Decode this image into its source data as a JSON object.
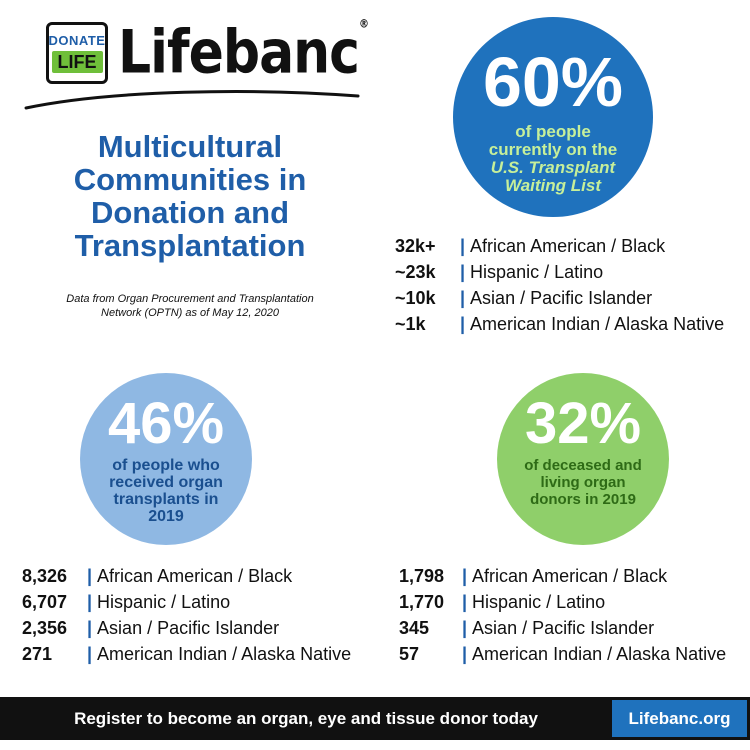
{
  "logo": {
    "badge_top": "DONATE",
    "badge_bottom": "LIFE",
    "brand": "Lifebanc",
    "brand_mark": "®"
  },
  "title": "Multicultural Communities in Donation and Transplantation",
  "source_note": "Data from Organ Procurement and Transplantation Network (OPTN) as of May 12, 2020",
  "waiting_list": {
    "percent": "60%",
    "caption_line1": "of people",
    "caption_line2": "currently on the",
    "caption_italic": "U.S. Transplant Waiting List",
    "rows": [
      {
        "count": "32k+",
        "group": "African American / Black"
      },
      {
        "count": "~23k",
        "group": "Hispanic / Latino"
      },
      {
        "count": "~10k",
        "group": "Asian / Pacific Islander"
      },
      {
        "count": "~1k",
        "group": "American Indian / Alaska Native"
      }
    ]
  },
  "recipients": {
    "percent": "46%",
    "caption": "of people who received organ transplants in 2019",
    "rows": [
      {
        "count": "8,326",
        "group": "African American / Black"
      },
      {
        "count": "6,707",
        "group": "Hispanic / Latino"
      },
      {
        "count": "2,356",
        "group": "Asian / Pacific Islander"
      },
      {
        "count": "271",
        "group": "American Indian / Alaska Native"
      }
    ]
  },
  "donors": {
    "percent": "32%",
    "caption": "of deceased and living organ donors in 2019",
    "rows": [
      {
        "count": "1,798",
        "group": "African American / Black"
      },
      {
        "count": "1,770",
        "group": "Hispanic / Latino"
      },
      {
        "count": "345",
        "group": "Asian / Pacific Islander"
      },
      {
        "count": "57",
        "group": "American Indian / Alaska Native"
      }
    ]
  },
  "separator": "|",
  "footer": {
    "cta": "Register to become an organ, eye and tissue donor today",
    "link": "Lifebanc.org"
  },
  "colors": {
    "brand_blue": "#1f72bd",
    "title_blue": "#1f5ea8",
    "recipients_circle": "#8fb8e3",
    "donors_circle": "#8fcf6a",
    "footer_bg": "#111111"
  }
}
